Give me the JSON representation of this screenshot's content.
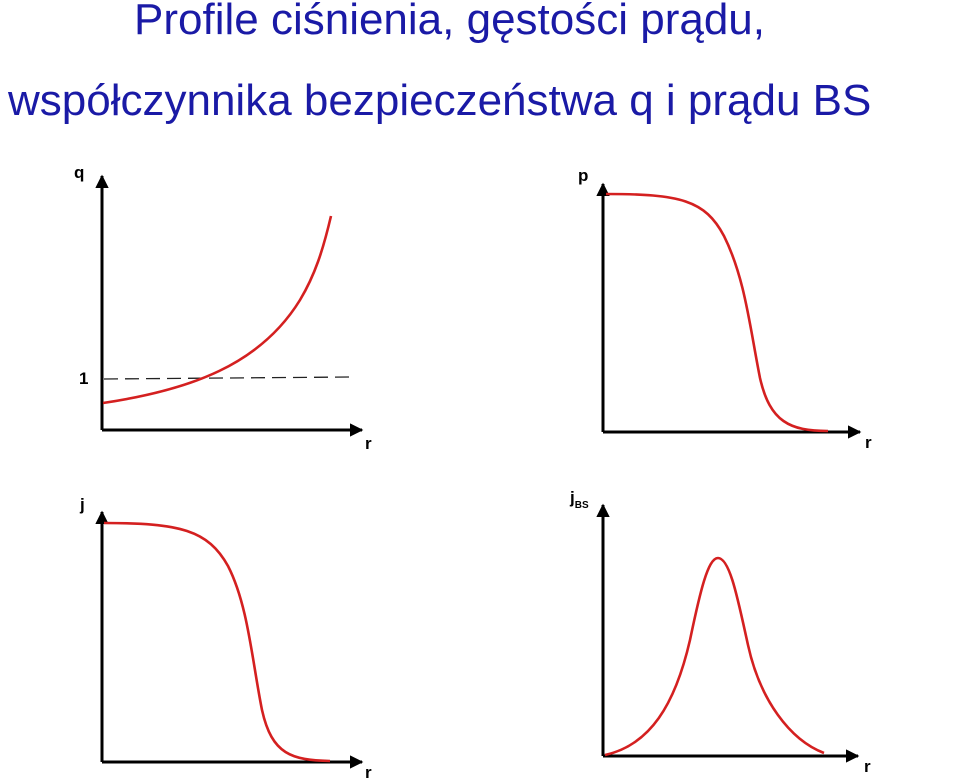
{
  "title_line1": "Profile ciśnienia, gęstości prądu,",
  "title_line2": "współczynnika bezpieczeństwa q i prądu BS",
  "colors": {
    "title": "#1a1aa6",
    "curve": "#d42020",
    "axis": "#000000"
  },
  "chart_data": [
    {
      "type": "line",
      "ylabel": "q",
      "xlabel": "r",
      "y_ticks": [
        "1"
      ],
      "reference_line": {
        "y": 1,
        "style": "dashed"
      },
      "shape": "monotonic increasing, convex (exponential-like)",
      "series": [
        {
          "x": [
            0,
            0.2,
            0.4,
            0.6,
            0.8,
            1.0
          ],
          "y": [
            0.85,
            0.96,
            1.15,
            1.48,
            2.1,
            3.3
          ]
        }
      ]
    },
    {
      "type": "line",
      "ylabel": "p",
      "xlabel": "r",
      "shape": "flat top, then steep sigmoid drop to zero",
      "series": [
        {
          "x": [
            0,
            0.2,
            0.4,
            0.6,
            0.7,
            0.8,
            0.9,
            1.0
          ],
          "y": [
            1.0,
            0.99,
            0.9,
            0.55,
            0.3,
            0.08,
            0.01,
            0.0
          ]
        }
      ]
    },
    {
      "type": "line",
      "ylabel": "j",
      "xlabel": "r",
      "shape": "flat top, then steep sigmoid drop to zero",
      "series": [
        {
          "x": [
            0,
            0.2,
            0.4,
            0.6,
            0.7,
            0.8,
            0.9,
            1.0
          ],
          "y": [
            1.0,
            0.99,
            0.9,
            0.55,
            0.3,
            0.08,
            0.01,
            0.0
          ]
        }
      ]
    },
    {
      "type": "line",
      "ylabel": "j",
      "ylabel_sub": "BS",
      "xlabel": "r",
      "shape": "single peak near mid-radius, zero at both ends",
      "series": [
        {
          "x": [
            0,
            0.25,
            0.45,
            0.52,
            0.6,
            0.8,
            1.0
          ],
          "y": [
            0.0,
            0.15,
            0.75,
            1.0,
            0.75,
            0.15,
            0.0
          ]
        }
      ]
    }
  ]
}
